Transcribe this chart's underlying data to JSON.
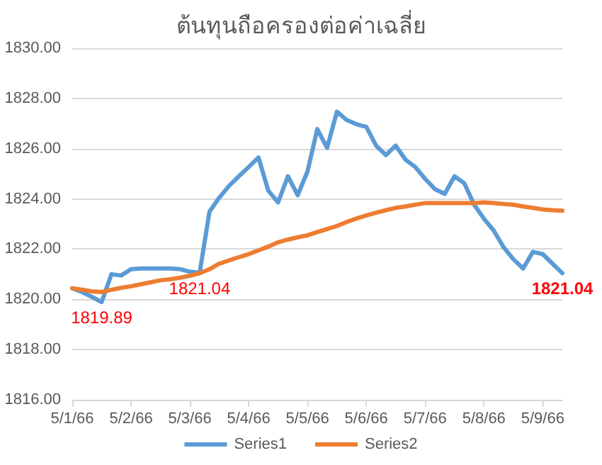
{
  "chart_data": {
    "type": "line",
    "title": "ต้นทุนถือครองต่อค่าเฉลี่ย",
    "categories": [
      "5/1/66",
      null,
      null,
      null,
      null,
      null,
      "5/2/66",
      null,
      null,
      null,
      null,
      null,
      "5/3/66",
      null,
      null,
      null,
      null,
      null,
      "5/4/66",
      null,
      null,
      null,
      null,
      null,
      "5/5/66",
      null,
      null,
      null,
      null,
      null,
      "5/6/66",
      null,
      null,
      null,
      null,
      null,
      "5/7/66",
      null,
      null,
      null,
      null,
      null,
      "5/8/66",
      null,
      null,
      null,
      null,
      null,
      "5/9/66",
      null,
      null
    ],
    "series": [
      {
        "name": "Series1",
        "color": "#5b9bd5",
        "values": [
          1820.44,
          1820.29,
          1820.1,
          1819.89,
          1821.0,
          1820.95,
          1821.2,
          1821.23,
          1821.23,
          1821.23,
          1821.23,
          1821.2,
          1821.1,
          1821.05,
          1823.49,
          1824.05,
          1824.52,
          1824.9,
          1825.27,
          1825.65,
          1824.33,
          1823.86,
          1824.9,
          1824.15,
          1825.09,
          1826.78,
          1826.03,
          1827.47,
          1827.14,
          1826.97,
          1826.87,
          1826.12,
          1825.74,
          1826.12,
          1825.56,
          1825.27,
          1824.8,
          1824.39,
          1824.2,
          1824.9,
          1824.62,
          1823.77,
          1823.21,
          1822.74,
          1822.08,
          1821.6,
          1821.23,
          1821.89,
          1821.8,
          1821.42,
          1821.04
        ],
        "value_labels": [
          null,
          null,
          null,
          "1819.89",
          null,
          null,
          null,
          null,
          null,
          null,
          null,
          null,
          null,
          null,
          null,
          null,
          null,
          null,
          null,
          null,
          null,
          null,
          null,
          null,
          null,
          null,
          null,
          null,
          null,
          null,
          null,
          null,
          null,
          null,
          null,
          null,
          null,
          null,
          null,
          null,
          null,
          null,
          null,
          null,
          null,
          null,
          null,
          null,
          null,
          null,
          "1821.04"
        ]
      },
      {
        "name": "Series2",
        "color": "#ed7d31",
        "values": [
          1820.44,
          1820.38,
          1820.32,
          1820.29,
          1820.38,
          1820.46,
          1820.52,
          1820.6,
          1820.68,
          1820.76,
          1820.8,
          1820.86,
          1820.94,
          1821.04,
          1821.2,
          1821.42,
          1821.55,
          1821.68,
          1821.8,
          1821.95,
          1822.1,
          1822.27,
          1822.38,
          1822.47,
          1822.55,
          1822.68,
          1822.8,
          1822.92,
          1823.08,
          1823.22,
          1823.34,
          1823.45,
          1823.55,
          1823.64,
          1823.7,
          1823.77,
          1823.83,
          1823.83,
          1823.83,
          1823.83,
          1823.83,
          1823.83,
          1823.86,
          1823.83,
          1823.8,
          1823.77,
          1823.7,
          1823.64,
          1823.58,
          1823.55,
          1823.53
        ],
        "value_labels": [
          null,
          null,
          null,
          null,
          null,
          null,
          null,
          null,
          null,
          null,
          null,
          null,
          null,
          "1821.04",
          null,
          null,
          null,
          null,
          null,
          null,
          null,
          null,
          null,
          null,
          null,
          null,
          null,
          null,
          null,
          null,
          null,
          null,
          null,
          null,
          null,
          null,
          null,
          null,
          null,
          null,
          null,
          null,
          null,
          null,
          null,
          null,
          null,
          null,
          null,
          null,
          null
        ]
      }
    ],
    "ylim": [
      1816,
      1830
    ],
    "yticks": [
      {
        "value": 1816,
        "label": "1816.00"
      },
      {
        "value": 1818,
        "label": "1818.00"
      },
      {
        "value": 1820,
        "label": "1820.00"
      },
      {
        "value": 1822,
        "label": "1822.00"
      },
      {
        "value": 1824,
        "label": "1824.00"
      },
      {
        "value": 1826,
        "label": "1826.00"
      },
      {
        "value": 1828,
        "label": "1828.00"
      },
      {
        "value": 1830,
        "label": "1830.00"
      }
    ],
    "grid": "y",
    "legend": "bottom",
    "marker": "none",
    "line_style": "solid"
  }
}
